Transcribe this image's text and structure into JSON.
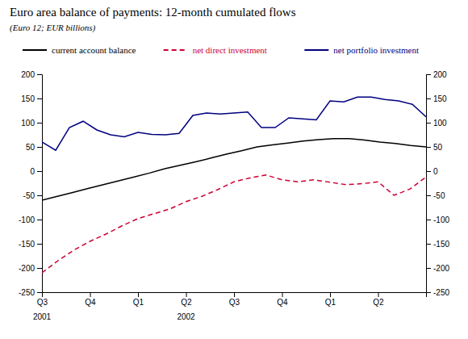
{
  "chart_data": {
    "type": "line",
    "title": "Euro area balance of payments: 12-month cumulated flows",
    "subtitle": "(Euro 12; EUR billions)",
    "xlim": [
      0,
      24
    ],
    "xticks": [
      {
        "value": 0,
        "label": "Q3"
      },
      {
        "value": 3,
        "label": "Q4"
      },
      {
        "value": 6,
        "label": "Q1"
      },
      {
        "value": 9,
        "label": "Q2"
      },
      {
        "value": 12,
        "label": "Q3"
      },
      {
        "value": 15,
        "label": "Q4"
      },
      {
        "value": 18,
        "label": "Q1"
      },
      {
        "value": 21,
        "label": "Q2"
      }
    ],
    "ylim": [
      -250,
      200
    ],
    "yticks": [
      -250,
      -200,
      -150,
      -100,
      -50,
      0,
      50,
      100,
      150,
      200
    ],
    "y2lim": [
      -250,
      200
    ],
    "y2ticks": [
      -250,
      -200,
      -150,
      -100,
      -50,
      0,
      50,
      100,
      150,
      200
    ],
    "annotations": [
      {
        "text": "2001",
        "x": 0
      },
      {
        "text": "2002",
        "x": 9
      }
    ],
    "grid": false,
    "series": [
      {
        "name": "current account balance",
        "color": "#000000",
        "line_style": "solid",
        "x": [
          0,
          0.96,
          1.92,
          2.88,
          3.84,
          4.8,
          5.76,
          6.72,
          7.68,
          8.64,
          9.6,
          10.56,
          11.52,
          12.48,
          13.44,
          14.4,
          15.36,
          16.32,
          17.28,
          18.24,
          19.2,
          20.16,
          21.12,
          22.08,
          23.04,
          24
        ],
        "values": [
          -60,
          -52,
          -44,
          -36,
          -28,
          -20,
          -12,
          -4,
          5,
          12,
          19,
          27,
          35,
          42,
          50,
          54,
          58,
          62,
          65,
          67,
          67,
          64,
          60,
          57,
          53,
          50
        ]
      },
      {
        "name": "net direct investment",
        "color": "#cc0033",
        "line_style": "dashed",
        "x": [
          0,
          1,
          2,
          3,
          4,
          5,
          6,
          7,
          8,
          9,
          10,
          11,
          12,
          13,
          14,
          15,
          16,
          17,
          18,
          19,
          20,
          21,
          22,
          23,
          24
        ],
        "values": [
          -210,
          -185,
          -163,
          -145,
          -130,
          -113,
          -98,
          -88,
          -78,
          -63,
          -52,
          -38,
          -22,
          -14,
          -8,
          -18,
          -22,
          -18,
          -23,
          -28,
          -26,
          -22,
          -50,
          -37,
          -12
        ]
      },
      {
        "name": "net portfolio investment",
        "color": "#000080",
        "line_style": "solid",
        "x": [
          0,
          0.857142857142857,
          1.714285714285714,
          2.571428571428571,
          3.428571428571429,
          4.285714285714286,
          5.142857142857143,
          6,
          6.857142857142857,
          7.714285714285714,
          8.571428571428571,
          9.428571428571429,
          10.285714285714286,
          11.142857142857142,
          12,
          12.857142857142858,
          13.714285714285714,
          14.571428571428571,
          15.428571428571429,
          16.285714285714285,
          17.142857142857142,
          18,
          18.857142857142858,
          19.714285714285715,
          20.571428571428573,
          21.428571428571427,
          22.285714285714285,
          23.142857142857142,
          24
        ],
        "values": [
          60,
          43,
          90,
          103,
          85,
          75,
          71,
          80,
          76,
          75,
          78,
          115,
          120,
          118,
          120,
          122,
          90,
          90,
          110,
          108,
          106,
          145,
          143,
          153,
          153,
          148,
          145,
          138,
          112
        ]
      }
    ]
  }
}
